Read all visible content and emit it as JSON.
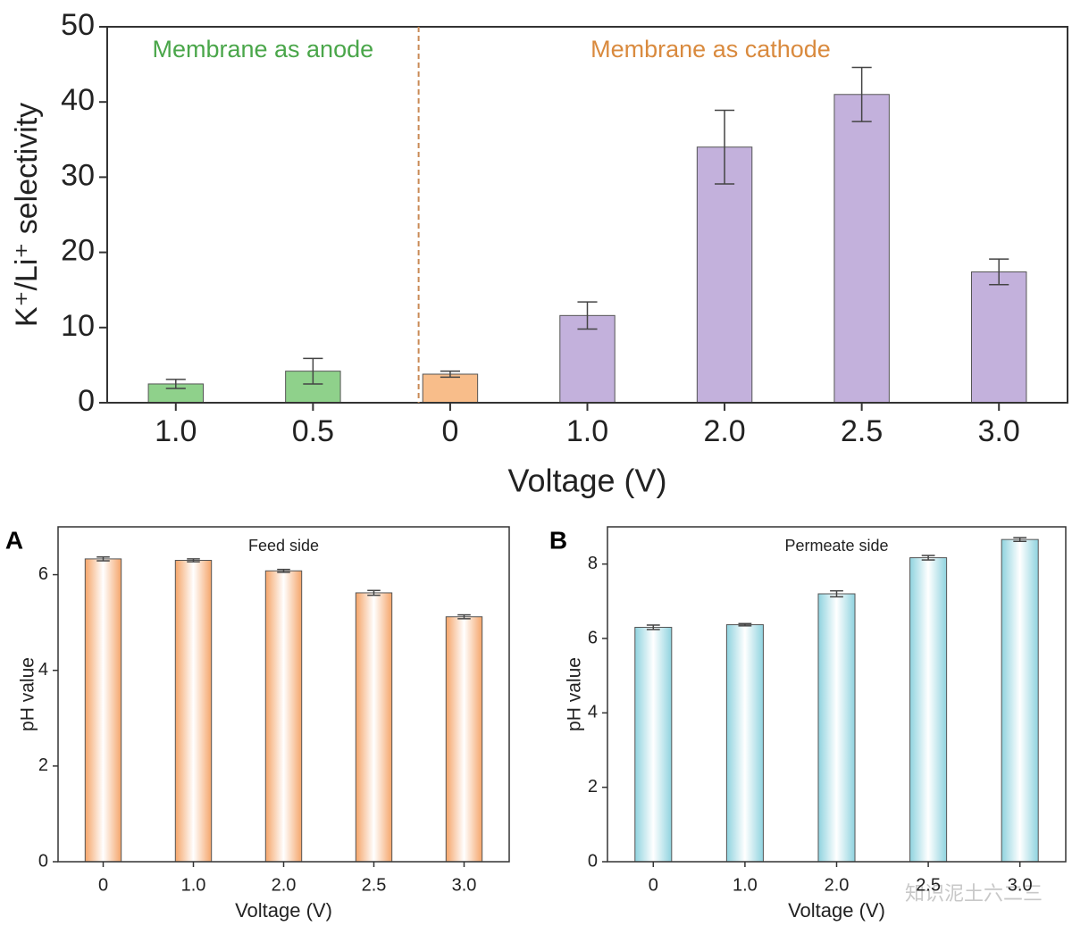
{
  "chart_data": [
    {
      "type": "bar",
      "categories": [
        "1.0",
        "0.5",
        "0",
        "1.0",
        "2.0",
        "2.5",
        "3.0"
      ],
      "values": [
        2.5,
        4.2,
        3.8,
        11.6,
        34.0,
        41.0,
        17.4
      ],
      "errors": [
        0.6,
        1.7,
        0.4,
        1.8,
        4.9,
        3.6,
        1.7
      ],
      "colors": [
        "#8fd18b",
        "#8fd18b",
        "#f8bd8a",
        "#c3b1dc",
        "#c3b1dc",
        "#c3b1dc",
        "#c3b1dc"
      ],
      "ylim": [
        0,
        50
      ],
      "yticks": [
        0,
        10,
        20,
        30,
        40,
        50
      ],
      "x_label": "Voltage (V)",
      "y_label": "K⁺/Li⁺ selectivity",
      "annotations": [
        "Membrane as anode",
        "Membrane as cathode"
      ],
      "annotation_colors": [
        "#4aa64a",
        "#d98a3e"
      ],
      "gradient": false
    },
    {
      "type": "bar",
      "panel": "A",
      "annotation": "Feed side",
      "categories": [
        "0",
        "1.0",
        "2.0",
        "2.5",
        "3.0"
      ],
      "values": [
        6.33,
        6.3,
        6.08,
        5.62,
        5.12
      ],
      "errors": [
        0.04,
        0.03,
        0.03,
        0.05,
        0.04
      ],
      "color": "#f5a56a",
      "ylim": [
        0,
        7
      ],
      "yticks": [
        0,
        2,
        4,
        6
      ],
      "x_label": "Voltage (V)",
      "y_label": "pH value",
      "gradient": true
    },
    {
      "type": "bar",
      "panel": "B",
      "annotation": "Permeate side",
      "categories": [
        "0",
        "1.0",
        "2.0",
        "2.5",
        "3.0"
      ],
      "values": [
        6.3,
        6.37,
        7.2,
        8.17,
        8.66
      ],
      "errors": [
        0.06,
        0.03,
        0.08,
        0.06,
        0.05
      ],
      "color": "#8fd3df",
      "ylim": [
        0,
        9
      ],
      "yticks": [
        0,
        2,
        4,
        6,
        8
      ],
      "x_label": "Voltage (V)",
      "y_label": "pH value",
      "gradient": true
    }
  ],
  "watermark": "知识泥土六二三"
}
